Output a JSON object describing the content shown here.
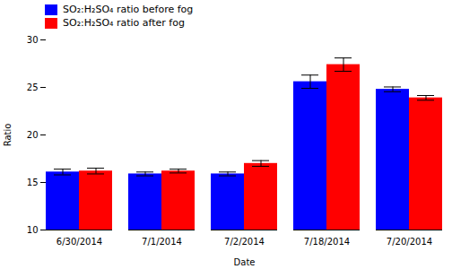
{
  "chart_data": {
    "type": "bar",
    "categories": [
      "6/30/2014",
      "7/1/2014",
      "7/2/2014",
      "7/18/2014",
      "7/20/2014"
    ],
    "series": [
      {
        "name": "SO₂:H₂SO₄ ratio before fog",
        "color": "#0000FF",
        "values": [
          16.1,
          15.9,
          15.9,
          25.6,
          24.8
        ],
        "errors": [
          0.3,
          0.2,
          0.2,
          0.7,
          0.25
        ]
      },
      {
        "name": "SO₂:H₂SO₄ ratio after fog",
        "color": "#FF0000",
        "values": [
          16.2,
          16.2,
          17.0,
          27.4,
          23.9
        ],
        "errors": [
          0.3,
          0.2,
          0.3,
          0.7,
          0.25
        ]
      }
    ],
    "xlabel": "Date",
    "ylabel": "Ratio",
    "ylim": [
      10,
      30
    ],
    "yticks": [
      10,
      15,
      20,
      25,
      30
    ],
    "legend": "upper left",
    "grid": false
  }
}
